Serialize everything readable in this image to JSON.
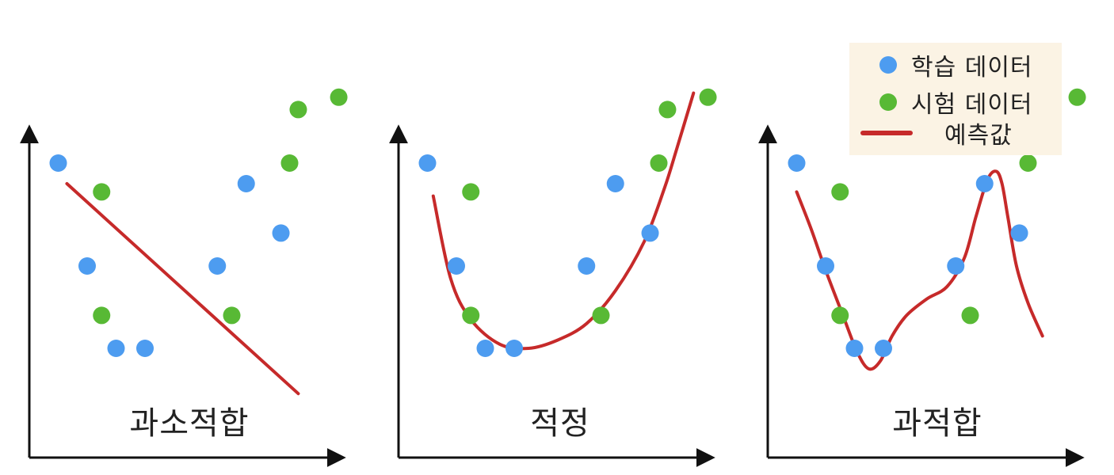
{
  "legend": {
    "train_label": "학습 데이터",
    "test_label": "시험 데이터",
    "pred_label": "예측값"
  },
  "colors": {
    "train": "#4d9cf0",
    "test": "#58b935",
    "pred": "#c62a2a",
    "axis": "#111111"
  },
  "panels": [
    {
      "title": "과소적합",
      "curve": "linear"
    },
    {
      "title": "적정",
      "curve": "quadratic"
    },
    {
      "title": "과적합",
      "curve": "wiggly"
    }
  ],
  "chart_data": {
    "type": "scatter",
    "train_points": [
      [
        1.0,
        7.5
      ],
      [
        2.0,
        5.0
      ],
      [
        3.0,
        3.0
      ],
      [
        4.0,
        3.0
      ],
      [
        6.5,
        5.0
      ],
      [
        7.5,
        7.0
      ],
      [
        8.7,
        5.8
      ]
    ],
    "test_points": [
      [
        2.5,
        6.8
      ],
      [
        2.5,
        3.8
      ],
      [
        7.0,
        3.8
      ],
      [
        9.0,
        7.5
      ],
      [
        9.3,
        8.8
      ],
      [
        10.7,
        9.1
      ]
    ],
    "axes_labels": "none",
    "grid": false
  }
}
